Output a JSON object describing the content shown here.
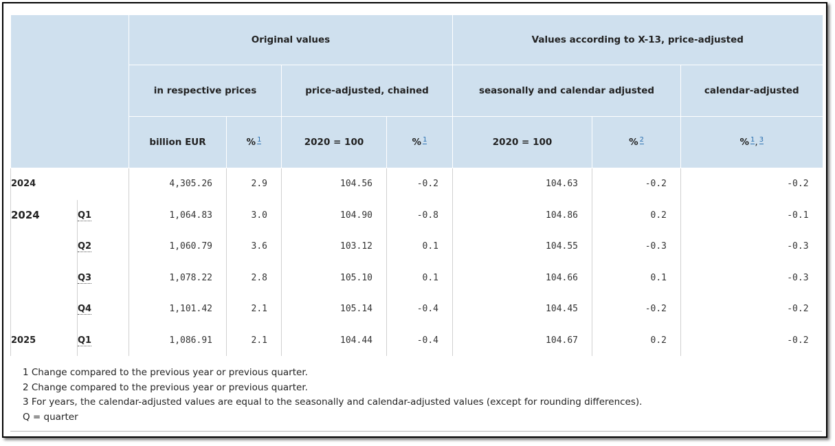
{
  "header": {
    "original_values": "Original values",
    "x13_values": "Values according to X-13, price-adjusted",
    "respective_prices": "in respective prices",
    "price_adjusted_chained": "price-adjusted, chained",
    "seasonally_calendar_adjusted": "seasonally and calendar adjusted",
    "calendar_adjusted": "calendar-adjusted",
    "billion_eur": "billion EUR",
    "pct": "%",
    "index_2020": "2020 = 100",
    "fn1": "1",
    "fn2": "2",
    "fn3": "3",
    "comma": ","
  },
  "rows": [
    {
      "year": "2024",
      "quarter": "",
      "v1": "4,305.26",
      "v2": "2.9",
      "v3": "104.56",
      "v4": "-0.2",
      "v5": "104.63",
      "v6": "-0.2",
      "v7": "-0.2"
    },
    {
      "year": "2024",
      "quarter": "Q1",
      "v1": "1,064.83",
      "v2": "3.0",
      "v3": "104.90",
      "v4": "-0.8",
      "v5": "104.86",
      "v6": "0.2",
      "v7": "-0.1"
    },
    {
      "year": "",
      "quarter": "Q2",
      "v1": "1,060.79",
      "v2": "3.6",
      "v3": "103.12",
      "v4": "0.1",
      "v5": "104.55",
      "v6": "-0.3",
      "v7": "-0.3"
    },
    {
      "year": "",
      "quarter": "Q3",
      "v1": "1,078.22",
      "v2": "2.8",
      "v3": "105.10",
      "v4": "0.1",
      "v5": "104.66",
      "v6": "0.1",
      "v7": "-0.3"
    },
    {
      "year": "",
      "quarter": "Q4",
      "v1": "1,101.42",
      "v2": "2.1",
      "v3": "105.14",
      "v4": "-0.4",
      "v5": "104.45",
      "v6": "-0.2",
      "v7": "-0.2"
    },
    {
      "year": "2025",
      "quarter": "Q1",
      "v1": "1,086.91",
      "v2": "2.1",
      "v3": "104.44",
      "v4": "-0.4",
      "v5": "104.67",
      "v6": "0.2",
      "v7": "-0.2"
    }
  ],
  "footnotes": [
    "1 Change compared to the previous year or previous quarter.",
    "2 Change compared to the previous year or previous quarter.",
    "3 For years, the calendar-adjusted values are equal to the seasonally and calendar-adjusted values (except for rounding differences).",
    "Q = quarter"
  ]
}
